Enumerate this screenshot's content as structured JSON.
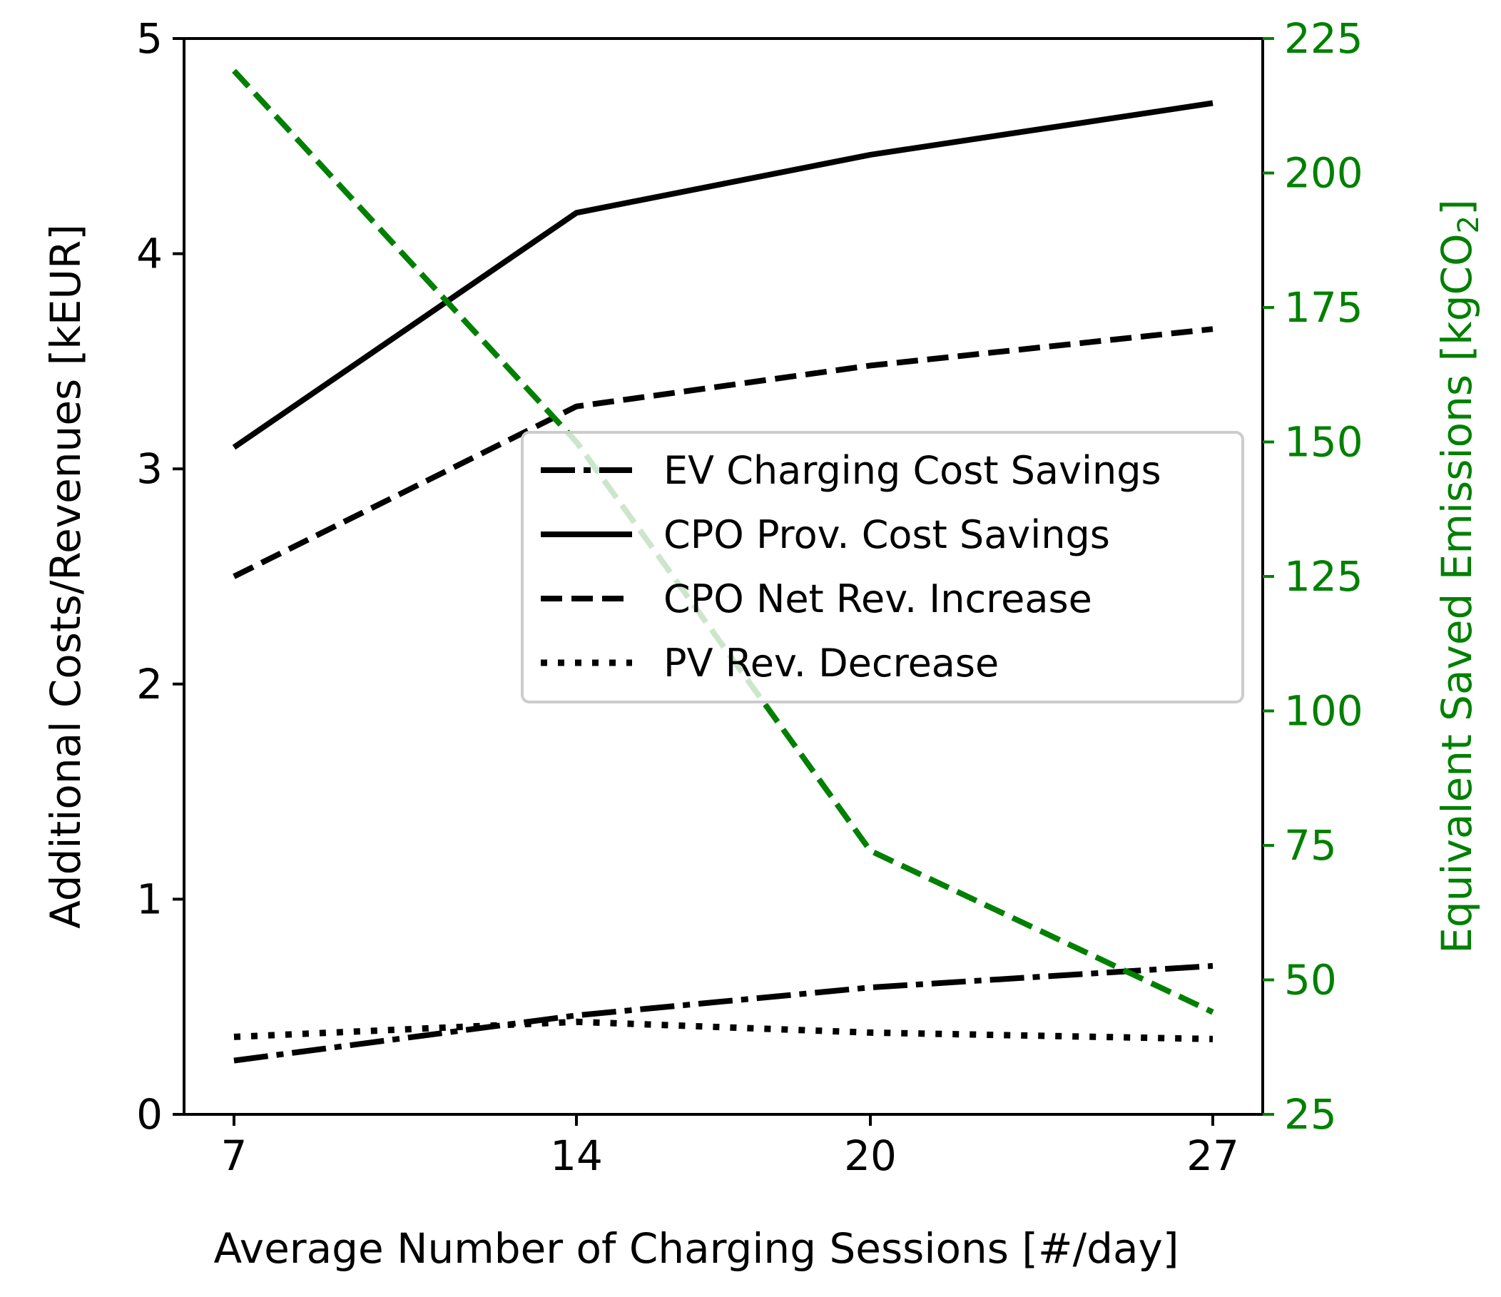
{
  "chart_data": {
    "type": "line",
    "xlabel": "Average Number of Charging Sessions [#/day]",
    "ylabel": "Additional Costs/Revenues [kEUR]",
    "ylabel_right_main": "Equivalent Saved Emissions [kgCO",
    "ylabel_right_sub": "2",
    "ylabel_right_close": "]",
    "x": [
      7,
      14,
      20,
      27
    ],
    "x_tick_labels": [
      "7",
      "14",
      "20",
      "27"
    ],
    "ylim": [
      0,
      5
    ],
    "y_ticks": [
      0,
      1,
      2,
      3,
      4,
      5
    ],
    "y_tick_labels": [
      "0",
      "1",
      "2",
      "3",
      "4",
      "5"
    ],
    "ylim_right": [
      25,
      225
    ],
    "y_right_ticks": [
      25,
      50,
      75,
      100,
      125,
      150,
      175,
      200,
      225
    ],
    "y_right_tick_labels": [
      "25",
      "50",
      "75",
      "100",
      "125",
      "150",
      "175",
      "200",
      "225"
    ],
    "series": [
      {
        "name": "EV Charging Cost Savings",
        "style": "dashdot",
        "axis": "left",
        "color": "#000000",
        "values": [
          0.25,
          0.46,
          0.59,
          0.69
        ]
      },
      {
        "name": "CPO Prov. Cost Savings",
        "style": "solid",
        "axis": "left",
        "color": "#000000",
        "values": [
          3.1,
          4.19,
          4.46,
          4.7
        ]
      },
      {
        "name": "CPO Net Rev. Increase",
        "style": "dashed",
        "axis": "left",
        "color": "#000000",
        "values": [
          2.5,
          3.29,
          3.48,
          3.65
        ]
      },
      {
        "name": "PV Rev. Decrease",
        "style": "dotted",
        "axis": "left",
        "color": "#000000",
        "values": [
          0.36,
          0.43,
          0.38,
          0.35
        ]
      },
      {
        "name": "Equivalent Saved Emissions",
        "style": "dashed",
        "axis": "right",
        "color": "#008000",
        "values": [
          219,
          150,
          74,
          44
        ]
      }
    ],
    "legend": [
      "EV Charging Cost Savings",
      "CPO Prov. Cost Savings",
      "CPO Net Rev. Increase",
      "PV Rev. Decrease"
    ],
    "legend_placement": "center-right",
    "right_axis_color": "#008000",
    "grid": false
  }
}
